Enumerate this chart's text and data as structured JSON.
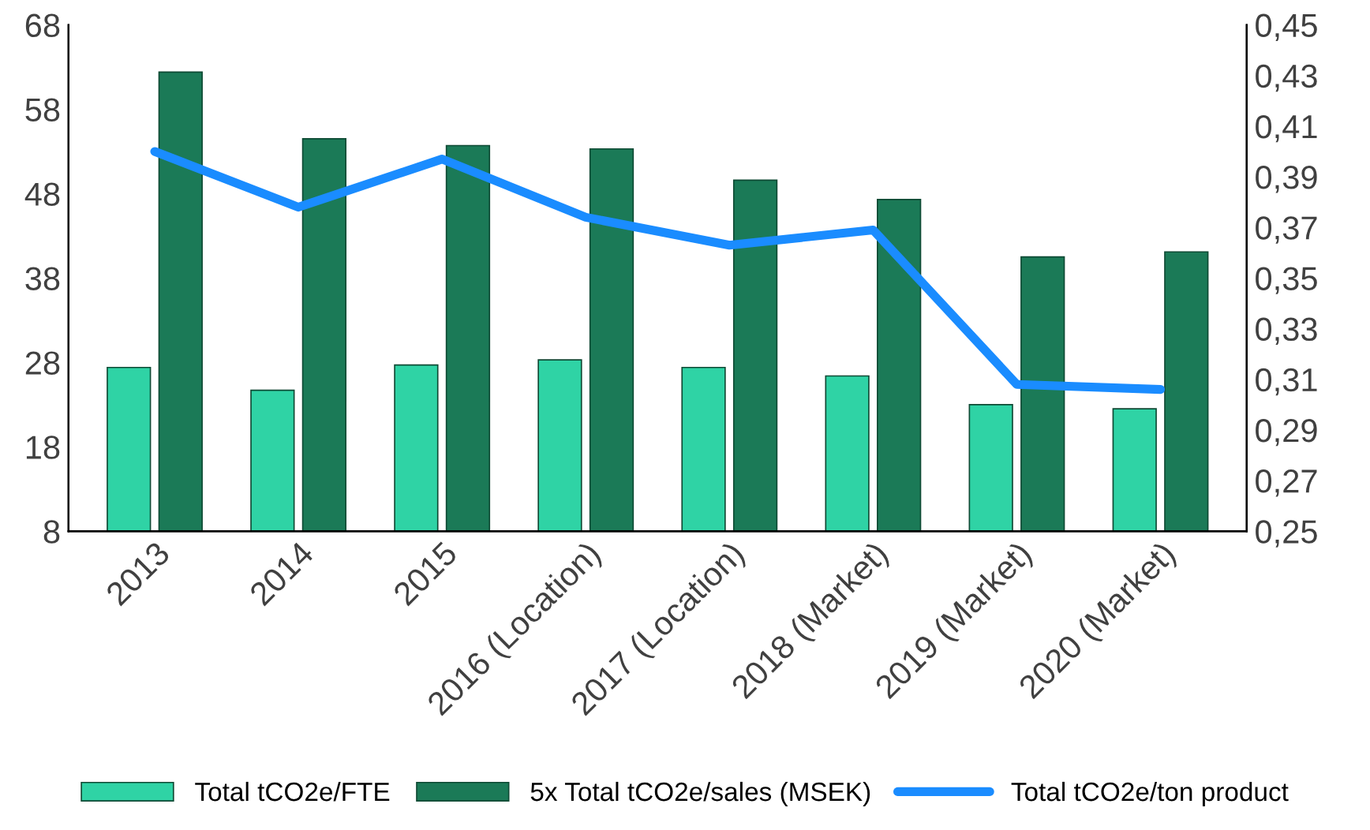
{
  "chart_data": {
    "type": "bar",
    "categories": [
      "2013",
      "2014",
      "2015",
      "2016 (Location)",
      "2017 (Location)",
      "2018 (Market)",
      "2019 (Market)",
      "2020 (Market)"
    ],
    "series": [
      {
        "name": "Total tCO2e/FTE",
        "color": "#2fd3a5",
        "values": [
          27.4,
          24.7,
          27.7,
          28.3,
          27.4,
          26.4,
          23.0,
          22.5
        ]
      },
      {
        "name": "5x Total tCO2e/sales (MSEK)",
        "color": "#1b7a57",
        "values": [
          62.4,
          54.5,
          53.7,
          53.3,
          49.6,
          47.3,
          40.5,
          41.1
        ]
      },
      {
        "name": "Total tCO2e/ton product",
        "type": "line",
        "axis": "y2",
        "color": "#1a8cff",
        "values": [
          0.4,
          0.378,
          0.397,
          0.374,
          0.363,
          0.369,
          0.308,
          0.306
        ]
      }
    ],
    "ylim": [
      8,
      68
    ],
    "yticks": [
      8,
      18,
      28,
      38,
      48,
      58,
      68
    ],
    "y2lim": [
      0.25,
      0.45
    ],
    "y2ticks": [
      {
        "value": 0.25,
        "label": "0,25"
      },
      {
        "value": 0.27,
        "label": "0,27"
      },
      {
        "value": 0.29,
        "label": "0,29"
      },
      {
        "value": 0.31,
        "label": "0,31"
      },
      {
        "value": 0.33,
        "label": "0,33"
      },
      {
        "value": 0.35,
        "label": "0,35"
      },
      {
        "value": 0.37,
        "label": "0,37"
      },
      {
        "value": 0.39,
        "label": "0,39"
      },
      {
        "value": 0.41,
        "label": "0,41"
      },
      {
        "value": 0.43,
        "label": "0,43"
      },
      {
        "value": 0.45,
        "label": "0,45"
      }
    ],
    "legend": "bottom",
    "grid": false
  }
}
